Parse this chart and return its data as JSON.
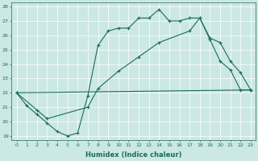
{
  "xlabel": "Humidex (Indice chaleur)",
  "bg_color": "#cce8e4",
  "line_color": "#1a6b5a",
  "grid_color": "#b0d4cf",
  "xlim": [
    -0.5,
    23.5
  ],
  "ylim": [
    18.7,
    28.3
  ],
  "xticks": [
    0,
    1,
    2,
    3,
    4,
    5,
    6,
    7,
    8,
    9,
    10,
    11,
    12,
    13,
    14,
    15,
    16,
    17,
    18,
    19,
    20,
    21,
    22,
    23
  ],
  "yticks": [
    19,
    20,
    21,
    22,
    23,
    24,
    25,
    26,
    27,
    28
  ],
  "line1_x": [
    0,
    1,
    2,
    3,
    4,
    5,
    6,
    7,
    8,
    9,
    10,
    11,
    12,
    13,
    14,
    15,
    16,
    17,
    18,
    19,
    20,
    21,
    22,
    23
  ],
  "line1_y": [
    22.0,
    21.1,
    20.5,
    19.9,
    19.3,
    19.0,
    19.2,
    21.8,
    25.3,
    26.3,
    26.5,
    26.5,
    27.2,
    27.2,
    27.8,
    27.0,
    27.0,
    27.2,
    27.2,
    25.7,
    24.2,
    23.6,
    22.2,
    22.2
  ],
  "line2_x": [
    0,
    2,
    3,
    7,
    8,
    10,
    12,
    14,
    17,
    18,
    19,
    20,
    21,
    22,
    23
  ],
  "line2_y": [
    22.0,
    20.8,
    20.2,
    21.0,
    22.3,
    23.5,
    24.5,
    25.5,
    26.3,
    27.2,
    25.8,
    25.5,
    24.2,
    23.4,
    22.2
  ],
  "line3_x": [
    0,
    23
  ],
  "line3_y": [
    22.0,
    22.2
  ]
}
